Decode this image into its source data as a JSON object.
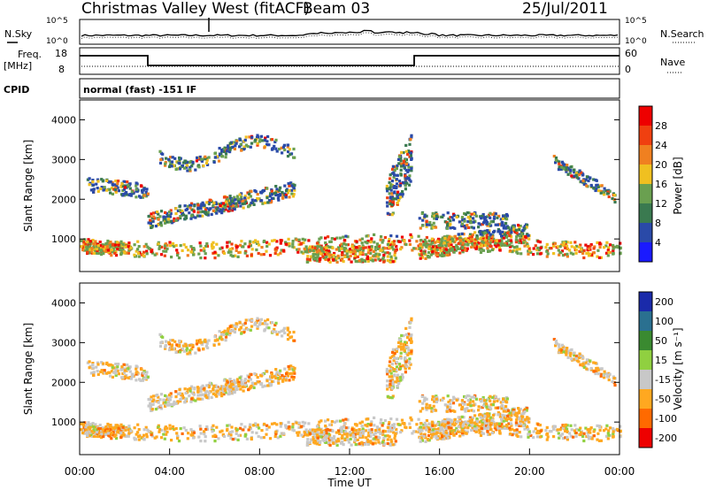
{
  "header": {
    "title": "Christmas Valley West (fitACF)",
    "beam": "Beam 03",
    "date": "25/Jul/2011"
  },
  "sky_panel": {
    "left_label": "N.Sky",
    "right_label": "N.Search",
    "ticks": [
      "10^5",
      "10^0"
    ]
  },
  "freq_panel": {
    "left_label_line1": "Freq.",
    "left_label_line2": "[MHz]",
    "right_label": "Nave",
    "left_ticks": [
      "18",
      "8"
    ],
    "right_ticks": [
      "60",
      "0"
    ]
  },
  "cpid_panel": {
    "label": "CPID",
    "text": "normal (fast) -151 IF"
  },
  "colors": {
    "power": [
      "#1a1aff",
      "#2a4aa8",
      "#3a7a50",
      "#6aa050",
      "#f0c020",
      "#f08020",
      "#f04010",
      "#ee0000"
    ],
    "velocity": [
      "#ee0000",
      "#ff6a00",
      "#ffa820",
      "#c8c8c8",
      "#90d040",
      "#3a8a30",
      "#2a7090",
      "#1a2aaa"
    ]
  },
  "chart_data": [
    {
      "type": "heatmap",
      "title": "",
      "ylabel": "Slant Range [km]",
      "xlabel": "",
      "xlim": [
        "00:00",
        "00:00"
      ],
      "ylim": [
        180,
        4500
      ],
      "yticks": [
        "1000",
        "2000",
        "3000",
        "4000"
      ],
      "colorbar": {
        "label": "Power [dB]",
        "ticks": [
          "4",
          "8",
          "12",
          "16",
          "20",
          "24",
          "28"
        ],
        "range": [
          0,
          32
        ]
      }
    },
    {
      "type": "heatmap",
      "title": "",
      "ylabel": "Slant Range [km]",
      "xlabel": "Time UT",
      "xlim": [
        "00:00",
        "00:00"
      ],
      "ylim": [
        180,
        4500
      ],
      "xticks": [
        "00:00",
        "04:00",
        "08:00",
        "12:00",
        "16:00",
        "20:00",
        "00:00"
      ],
      "yticks": [
        "1000",
        "2000",
        "3000",
        "4000"
      ],
      "colorbar": {
        "label": "Velocity [m s⁻¹]",
        "ticks": [
          "200",
          "100",
          "50",
          "15",
          "-15",
          "-50",
          "-100",
          "-200"
        ]
      }
    }
  ]
}
